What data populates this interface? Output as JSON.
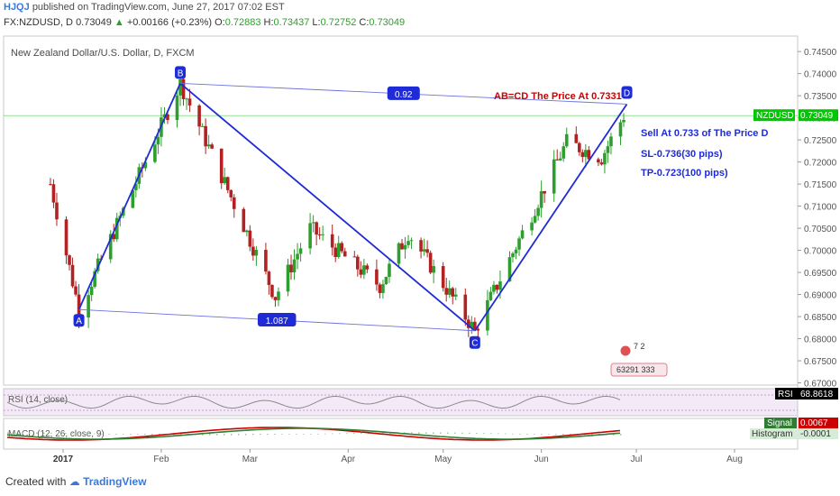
{
  "header": {
    "brand": "HJQJ",
    "published": "published on TradingView.com, June 27, 2017 07:02 EST",
    "symbol_line": "FX:NZDUSD, D",
    "last": "0.73049",
    "change_arrow": "▲",
    "change": "+0.00166 (+0.23%)",
    "o_label": "O:",
    "o": "0.72883",
    "h_label": "H:",
    "h": "0.73437",
    "l_label": "L:",
    "l": "0.72752",
    "c_label": "C:",
    "c": "0.73049"
  },
  "chart_title": "New Zealand Dollar/U.S. Dollar, D, FXCM",
  "footer": {
    "created_with": "Created with",
    "tradingview": "TradingView"
  },
  "annotations": {
    "label_a": "A",
    "label_b": "B",
    "label_c": "C",
    "label_d": "D",
    "ratio_bd": "0.92",
    "ratio_ac": "1.087",
    "abcd_title": "AB=CD The Price At 0.7331",
    "sell": "Sell At 0.733 of The Price D",
    "sl": "SL-0.736(30 pips)",
    "tp": "TP-0.723(100 pips)",
    "icon_count_1": "7  2",
    "icon_count_2": "63291 333"
  },
  "price_tag": {
    "symbol": "NZDUSD",
    "value": "0.73049"
  },
  "rsi": {
    "label": "RSI (14, close)",
    "tag": "RSI",
    "value": "68.8618"
  },
  "macd": {
    "label": "MACD (12, 26, close, 9)",
    "signal_tag": "Signal",
    "signal_value": "0.0067",
    "hist_tag": "Histogram",
    "hist_value": "-0.0001"
  },
  "colors": {
    "up": "#2e9e2e",
    "down": "#b22222",
    "pattern": "#1e2bd6",
    "annotation_red": "#cc0000",
    "annotation_blue": "#1e2bd6",
    "last_price": "#00c800",
    "rsi_bg": "#f3e9f7",
    "macd_line": "#cc0000",
    "signal_line": "#2e7d32"
  },
  "chart_data": {
    "type": "candlestick",
    "title": "New Zealand Dollar/U.S. Dollar, D, FXCM",
    "y_axis_ticks": [
      "0.74500",
      "0.74000",
      "0.73500",
      "0.73000",
      "0.72500",
      "0.72000",
      "0.71500",
      "0.71000",
      "0.70500",
      "0.70000",
      "0.69500",
      "0.69000",
      "0.68500",
      "0.68000",
      "0.67500",
      "0.67000"
    ],
    "x_axis_ticks": [
      "2017",
      "Feb",
      "Mar",
      "Apr",
      "May",
      "Jun",
      "Jul",
      "Aug"
    ],
    "ylim": [
      0.6695,
      0.7485
    ],
    "pattern_points": [
      {
        "label": "A",
        "date": "2017-01-06",
        "price": 0.6866
      },
      {
        "label": "B",
        "date": "2017-02-07",
        "price": 0.7378
      },
      {
        "label": "C",
        "date": "2017-05-11",
        "price": 0.6818
      },
      {
        "label": "D",
        "date": "2017-06-28",
        "price": 0.7331
      }
    ],
    "last_price": 0.73049
  }
}
